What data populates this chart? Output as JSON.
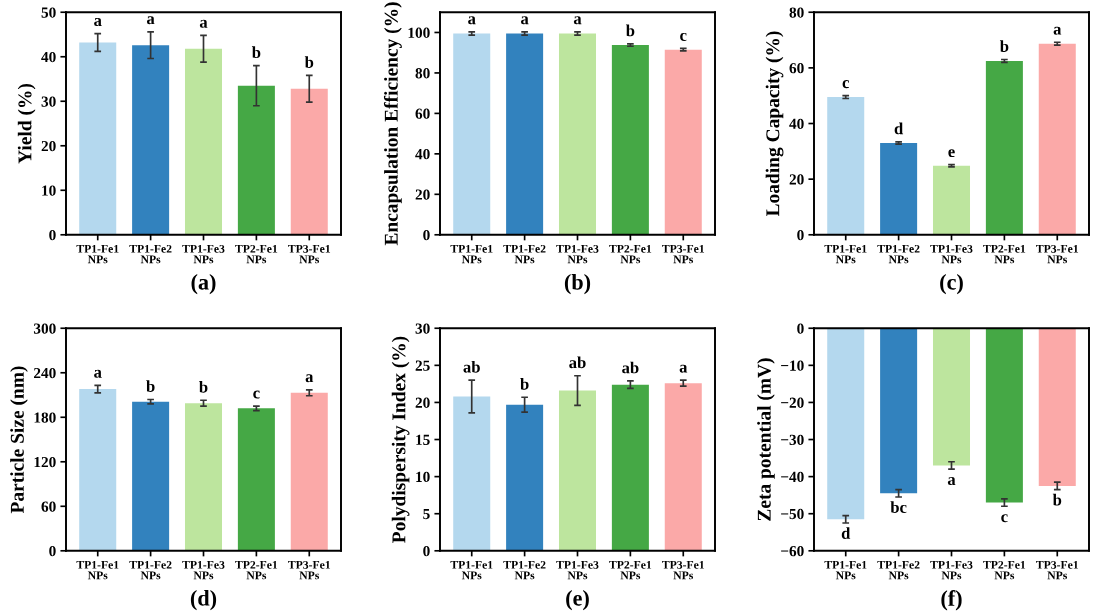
{
  "chart_data": [
    {
      "type": "bar",
      "xlabel": "(a)",
      "ylabel": "Yield (%)",
      "categories": [
        "TP1-Fe1 NPs",
        "TP1-Fe2 NPs",
        "TP1-Fe3 NPs",
        "TP2-Fe1 NPs",
        "TP3-Fe1 NPs"
      ],
      "values": [
        43.2,
        42.6,
        41.8,
        33.5,
        32.8
      ],
      "errors": [
        2,
        3,
        3,
        4.5,
        3
      ],
      "colors": [
        "#b4d8ee",
        "#3282be",
        "#bde59e",
        "#45a845",
        "#fba9a8"
      ],
      "ylim": [
        0,
        50
      ],
      "yticks": [
        0,
        10,
        20,
        30,
        40,
        50
      ],
      "grid": false,
      "value_labels": [
        "a",
        "a",
        "a",
        "b",
        "b"
      ]
    },
    {
      "type": "bar",
      "xlabel": "(b)",
      "ylabel": "Encapsulation Efficiency (%)",
      "categories": [
        "TP1-Fe1 NPs",
        "TP1-Fe2 NPs",
        "TP1-Fe3 NPs",
        "TP2-Fe1 NPs",
        "TP3-Fe1 NPs"
      ],
      "values": [
        99.5,
        99.5,
        99.5,
        93.8,
        91.5
      ],
      "errors": [
        0.8,
        0.8,
        0.8,
        0.6,
        0.6
      ],
      "colors": [
        "#b4d8ee",
        "#3282be",
        "#bde59e",
        "#45a845",
        "#fba9a8"
      ],
      "ylim": [
        0,
        110
      ],
      "yticks": [
        0,
        20,
        40,
        60,
        80,
        100
      ],
      "grid": false,
      "value_labels": [
        "a",
        "a",
        "a",
        "b",
        "c"
      ]
    },
    {
      "type": "bar",
      "xlabel": "(c)",
      "ylabel": "Loading Capacity (%)",
      "categories": [
        "TP1-Fe1 NPs",
        "TP1-Fe2 NPs",
        "TP1-Fe3 NPs",
        "TP2-Fe1 NPs",
        "TP3-Fe1 NPs"
      ],
      "values": [
        49.5,
        33,
        24.8,
        62.5,
        68.7
      ],
      "errors": [
        0.5,
        0.4,
        0.4,
        0.5,
        0.5
      ],
      "colors": [
        "#b4d8ee",
        "#3282be",
        "#bde59e",
        "#45a845",
        "#fba9a8"
      ],
      "ylim": [
        0,
        80
      ],
      "yticks": [
        0,
        20,
        40,
        60,
        80
      ],
      "grid": false,
      "value_labels": [
        "c",
        "d",
        "e",
        "b",
        "a"
      ]
    },
    {
      "type": "bar",
      "xlabel": "(d)",
      "ylabel": "Particle Size (nm)",
      "categories": [
        "TP1-Fe1 NPs",
        "TP1-Fe2 NPs",
        "TP1-Fe3 NPs",
        "TP2-Fe1 NPs",
        "TP3-Fe1 NPs"
      ],
      "values": [
        218,
        201,
        199,
        192,
        213
      ],
      "errors": [
        5,
        3,
        4,
        3,
        4
      ],
      "colors": [
        "#b4d8ee",
        "#3282be",
        "#bde59e",
        "#45a845",
        "#fba9a8"
      ],
      "ylim": [
        0,
        300
      ],
      "yticks": [
        0,
        60,
        120,
        180,
        240,
        300
      ],
      "grid": false,
      "value_labels": [
        "a",
        "b",
        "b",
        "c",
        "a"
      ]
    },
    {
      "type": "bar",
      "xlabel": "(e)",
      "ylabel": "Polydispersity Index (%)",
      "categories": [
        "TP1-Fe1 NPs",
        "TP1-Fe2 NPs",
        "TP1-Fe3 NPs",
        "TP2-Fe1 NPs",
        "TP3-Fe1 NPs"
      ],
      "values": [
        20.8,
        19.7,
        21.6,
        22.4,
        22.6
      ],
      "errors": [
        2.2,
        1,
        2,
        0.5,
        0.4
      ],
      "colors": [
        "#b4d8ee",
        "#3282be",
        "#bde59e",
        "#45a845",
        "#fba9a8"
      ],
      "ylim": [
        0,
        30
      ],
      "yticks": [
        0,
        5,
        10,
        15,
        20,
        25,
        30
      ],
      "grid": false,
      "value_labels": [
        "ab",
        "b",
        "ab",
        "ab",
        "a"
      ]
    },
    {
      "type": "bar",
      "xlabel": "(f)",
      "ylabel": "Zeta potential (mV)",
      "categories": [
        "TP1-Fe1 NPs",
        "TP1-Fe2 NPs",
        "TP1-Fe3 NPs",
        "TP2-Fe1 NPs",
        "TP3-Fe1 NPs"
      ],
      "values": [
        -51.5,
        -44.5,
        -37,
        -47,
        -42.5
      ],
      "errors": [
        1,
        1,
        1,
        1,
        1
      ],
      "colors": [
        "#b4d8ee",
        "#3282be",
        "#bde59e",
        "#45a845",
        "#fba9a8"
      ],
      "ylim": [
        -60,
        0
      ],
      "yticks": [
        {
          "value": -60,
          "label": "−60"
        },
        {
          "value": -50,
          "label": "−50"
        },
        {
          "value": -40,
          "label": "−40"
        },
        {
          "value": -30,
          "label": "−30"
        },
        {
          "value": -20,
          "label": "−20"
        },
        {
          "value": -10,
          "label": "−10"
        },
        0
      ],
      "grid": false,
      "value_labels": [
        "d",
        "bc",
        "a",
        "c",
        "b"
      ]
    }
  ]
}
